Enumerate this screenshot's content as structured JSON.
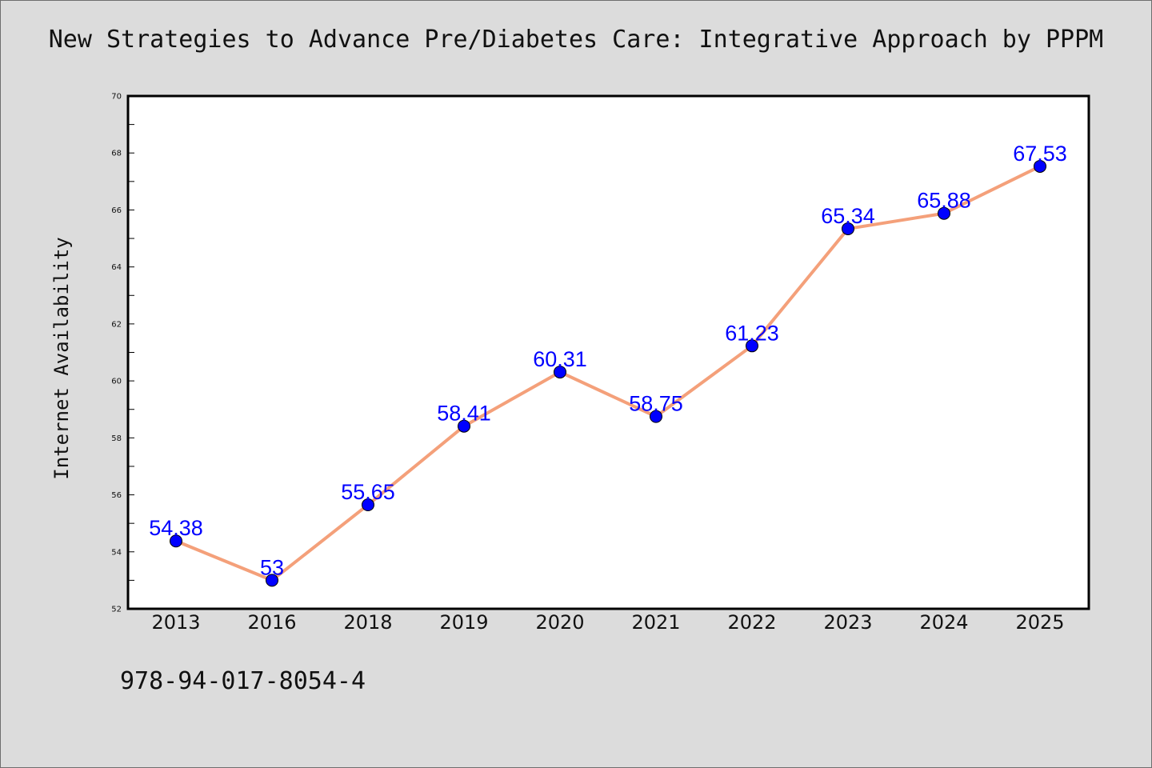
{
  "footer_text": "978-94-017-8054-4",
  "chart_data": {
    "type": "line",
    "title": "New Strategies to Advance Pre/Diabetes Care: Integrative Approach by PPPM",
    "xlabel": "",
    "ylabel": "Internet Availability",
    "categories": [
      "2013",
      "2016",
      "2018",
      "2019",
      "2020",
      "2021",
      "2022",
      "2023",
      "2024",
      "2025"
    ],
    "series": [
      {
        "values": [
          54.38,
          53,
          55.65,
          58.41,
          60.31,
          58.75,
          61.23,
          65.34,
          65.88,
          67.53
        ],
        "line_color": "#f4a07a",
        "marker_color": "#0000ff"
      }
    ],
    "data_labels": [
      "54.38",
      "53",
      "55.65",
      "58.41",
      "60.31",
      "58.75",
      "61.23",
      "65.34",
      "65.88",
      "67.53"
    ],
    "ylim": [
      52,
      70
    ],
    "y_ticks": [
      "52",
      "54",
      "56",
      "58",
      "60",
      "62",
      "64",
      "66",
      "68",
      "70"
    ],
    "grid": false,
    "legend": "none",
    "background_color": "#dcdcdc",
    "plot_background_color": "#ffffff"
  }
}
